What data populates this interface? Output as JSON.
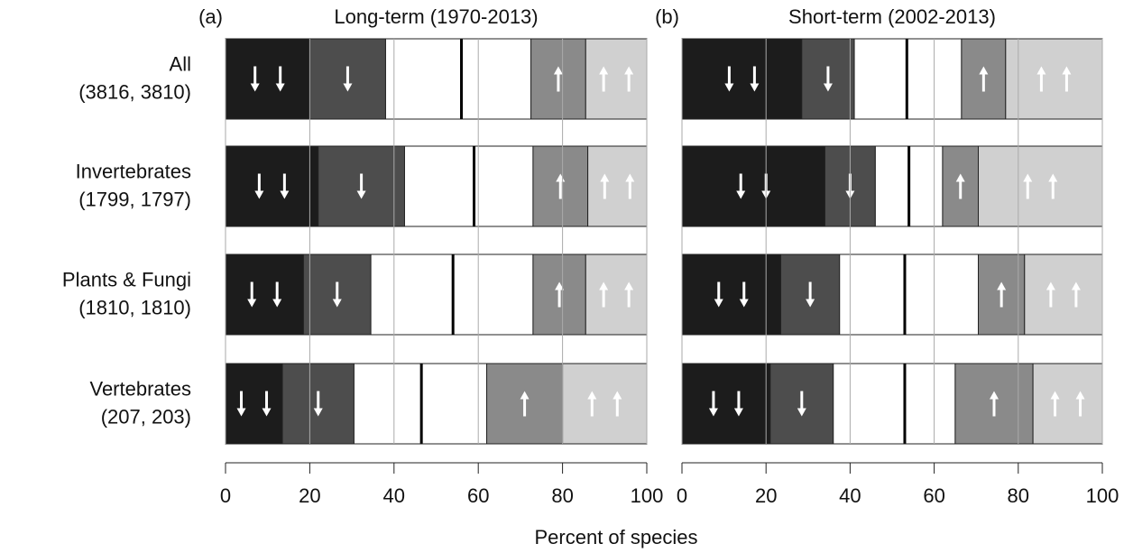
{
  "chart_data": [
    {
      "type": "stacked-bar",
      "panel_label": "(a)",
      "title": "Long-term (1970-2013)",
      "xlabel": "Percent of species",
      "categories": [
        "All",
        "Invertebrates",
        "Plants  & Fungi",
        "Vertebrates"
      ],
      "category_counts": [
        "(3816, 3810)",
        "(1799, 1797)",
        "(1810, 1810)",
        "(207, 203)"
      ],
      "series": [
        {
          "color": "#1c1c1c",
          "values": [
            20,
            22,
            18.5,
            13.5
          ]
        },
        {
          "color": "#4d4d4d",
          "values": [
            18,
            20.5,
            16,
            17
          ]
        },
        {
          "color": "#ffffff",
          "values": [
            18,
            16.5,
            19.5,
            16
          ]
        },
        {
          "color": "#ffffff",
          "values": [
            16.5,
            14,
            19,
            15.5
          ]
        },
        {
          "color": "#8a8a8a",
          "values": [
            13,
            13,
            12.5,
            18
          ]
        },
        {
          "color": "#d0d0d0",
          "values": [
            14.5,
            14,
            14.5,
            20
          ]
        }
      ],
      "xlim": [
        0,
        100
      ],
      "xticks": [
        0,
        20,
        40,
        60,
        80,
        100
      ],
      "grid": true
    },
    {
      "type": "stacked-bar",
      "panel_label": "(b)",
      "title": "Short-term (2002-2013)",
      "categories": [
        null,
        null,
        null,
        null
      ],
      "series": [
        {
          "color": "#1c1c1c",
          "values": [
            28.5,
            34,
            23.5,
            21
          ]
        },
        {
          "color": "#4d4d4d",
          "values": [
            12.5,
            12,
            14,
            15
          ]
        },
        {
          "color": "#ffffff",
          "values": [
            12.5,
            8,
            15.5,
            17
          ]
        },
        {
          "color": "#ffffff",
          "values": [
            13,
            8,
            17.5,
            12
          ]
        },
        {
          "color": "#8a8a8a",
          "values": [
            10.5,
            8.5,
            11,
            18.5
          ]
        },
        {
          "color": "#d0d0d0",
          "values": [
            23,
            29.5,
            18.5,
            16.5
          ]
        }
      ],
      "xlim": [
        0,
        100
      ],
      "xticks": [
        0,
        20,
        40,
        60,
        80,
        100
      ],
      "grid": true
    }
  ]
}
